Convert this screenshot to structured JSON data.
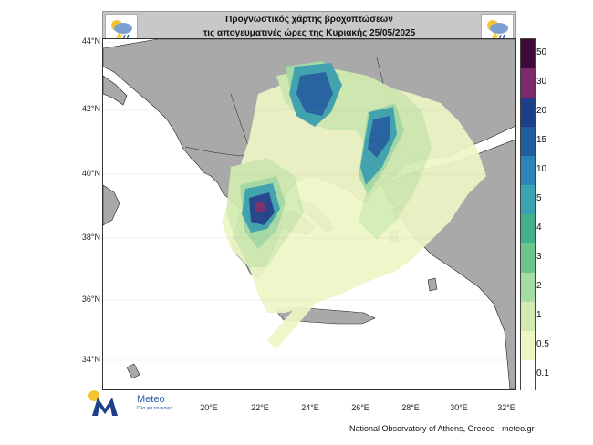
{
  "header": {
    "title_line1": "Προγνωστικός χάρτης βροχοπτώσεων",
    "title_line2": "τις απογευματινές ώρες  της Κυριακής 25/05/2025",
    "left_icon": "rain-cloud-lightning-icon",
    "right_icon": "rain-cloud-lightning-icon"
  },
  "map": {
    "lat_labels": [
      "44°N",
      "42°N",
      "40°N",
      "38°N",
      "36°N",
      "34°N"
    ],
    "lon_labels": [
      "20°E",
      "22°E",
      "24°E",
      "26°E",
      "28°E",
      "30°E",
      "32°E"
    ],
    "land_color": "#a9a9a9",
    "sea_color": "#ffffff"
  },
  "legend": {
    "labels": [
      "50",
      "30",
      "20",
      "15",
      "10",
      "5",
      "4",
      "3",
      "2",
      "1",
      "0.5",
      "0.1"
    ],
    "colors": [
      "#3d0a3a",
      "#7a2a6a",
      "#1e3f8a",
      "#1f5fa0",
      "#2a84b8",
      "#3aa3b0",
      "#44b08a",
      "#6ec58c",
      "#a5dca4",
      "#d2ecb0",
      "#eef6c6",
      "#ffffff"
    ]
  },
  "footer": {
    "logo_text": "Meteo",
    "logo_sub": "Όλα για τον καιρό",
    "credit": "National Observatory of Athens, Greece - meteo.gr"
  }
}
